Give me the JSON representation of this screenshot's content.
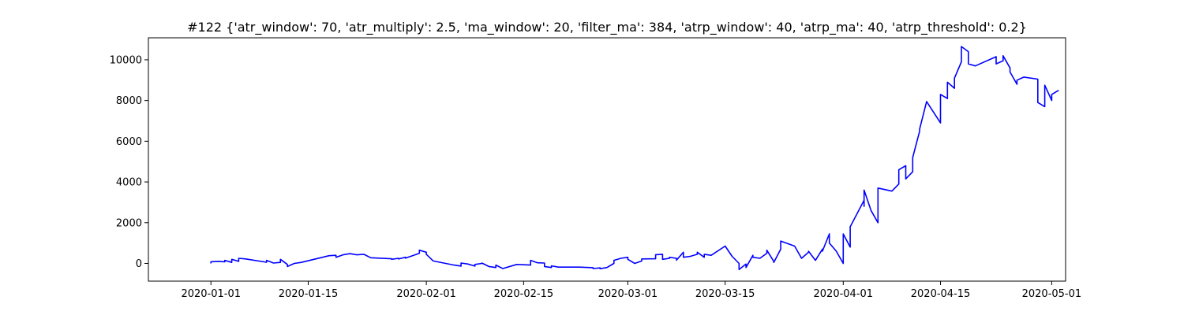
{
  "chart_data": {
    "type": "line",
    "title": "#122 {'atr_window': 70, 'atr_multiply': 2.5, 'ma_window': 20, 'filter_ma': 384, 'atrp_window': 40, 'atrp_ma': 40, 'atrp_threshold': 0.2}",
    "xlabel": "",
    "ylabel": "",
    "x_axis": "date",
    "xlim": [
      "2019-12-23",
      "2020-05-03"
    ],
    "ylim": [
      -870,
      11080
    ],
    "grid": false,
    "legend": "none",
    "x_ticks": [
      "2020-01-01",
      "2020-01-15",
      "2020-02-01",
      "2020-02-15",
      "2020-03-01",
      "2020-03-15",
      "2020-04-01",
      "2020-04-15",
      "2020-05-01"
    ],
    "y_ticks": [
      0,
      2000,
      4000,
      6000,
      8000,
      10000
    ],
    "colors": {
      "line": "#0000ff"
    },
    "series": [
      {
        "points": [
          [
            "2020-01-01",
            0
          ],
          [
            "2020-01-01",
            80
          ],
          [
            "2020-01-02",
            100
          ],
          [
            "2020-01-03",
            80
          ],
          [
            "2020-01-03",
            150
          ],
          [
            "2020-01-04",
            50
          ],
          [
            "2020-01-04",
            200
          ],
          [
            "2020-01-05",
            100
          ],
          [
            "2020-01-05",
            250
          ],
          [
            "2020-01-06",
            220
          ],
          [
            "2020-01-09",
            60
          ],
          [
            "2020-01-09",
            150
          ],
          [
            "2020-01-10",
            20
          ],
          [
            "2020-01-11",
            50
          ],
          [
            "2020-01-11",
            200
          ],
          [
            "2020-01-12",
            -50
          ],
          [
            "2020-01-12",
            -150
          ],
          [
            "2020-01-13",
            0
          ],
          [
            "2020-01-14",
            50
          ],
          [
            "2020-01-18",
            380
          ],
          [
            "2020-01-19",
            400
          ],
          [
            "2020-01-19",
            300
          ],
          [
            "2020-01-20",
            420
          ],
          [
            "2020-01-21",
            480
          ],
          [
            "2020-01-22",
            420
          ],
          [
            "2020-01-23",
            450
          ],
          [
            "2020-01-24",
            280
          ],
          [
            "2020-01-27",
            230
          ],
          [
            "2020-01-27",
            200
          ],
          [
            "2020-01-28",
            250
          ],
          [
            "2020-01-28",
            220
          ],
          [
            "2020-01-29",
            300
          ],
          [
            "2020-01-29",
            260
          ],
          [
            "2020-01-30",
            380
          ],
          [
            "2020-01-31",
            500
          ],
          [
            "2020-01-31",
            650
          ],
          [
            "2020-02-01",
            550
          ],
          [
            "2020-02-01",
            450
          ],
          [
            "2020-02-02",
            120
          ],
          [
            "2020-02-05",
            -80
          ],
          [
            "2020-02-06",
            -130
          ],
          [
            "2020-02-06",
            20
          ],
          [
            "2020-02-07",
            -30
          ],
          [
            "2020-02-08",
            -130
          ],
          [
            "2020-02-08",
            -50
          ],
          [
            "2020-02-09",
            0
          ],
          [
            "2020-02-09",
            20
          ],
          [
            "2020-02-10",
            -150
          ],
          [
            "2020-02-11",
            -200
          ],
          [
            "2020-02-11",
            -80
          ],
          [
            "2020-02-12",
            -250
          ],
          [
            "2020-02-14",
            -50
          ],
          [
            "2020-02-16",
            -80
          ],
          [
            "2020-02-16",
            150
          ],
          [
            "2020-02-17",
            30
          ],
          [
            "2020-02-18",
            20
          ],
          [
            "2020-02-18",
            -150
          ],
          [
            "2020-02-19",
            -200
          ],
          [
            "2020-02-19",
            -120
          ],
          [
            "2020-02-20",
            -180
          ],
          [
            "2020-02-23",
            -180
          ],
          [
            "2020-02-25",
            -210
          ],
          [
            "2020-02-25",
            -250
          ],
          [
            "2020-02-26",
            -220
          ],
          [
            "2020-02-26",
            -260
          ],
          [
            "2020-02-27",
            -200
          ],
          [
            "2020-02-28",
            0
          ],
          [
            "2020-02-28",
            150
          ],
          [
            "2020-02-29",
            250
          ],
          [
            "2020-03-01",
            300
          ],
          [
            "2020-03-01",
            200
          ],
          [
            "2020-03-02",
            0
          ],
          [
            "2020-03-03",
            120
          ],
          [
            "2020-03-03",
            220
          ],
          [
            "2020-03-05",
            230
          ],
          [
            "2020-03-05",
            430
          ],
          [
            "2020-03-06",
            450
          ],
          [
            "2020-03-06",
            200
          ],
          [
            "2020-03-07",
            250
          ],
          [
            "2020-03-07",
            300
          ],
          [
            "2020-03-08",
            250
          ],
          [
            "2020-03-08",
            160
          ],
          [
            "2020-03-09",
            550
          ],
          [
            "2020-03-09",
            300
          ],
          [
            "2020-03-10",
            350
          ],
          [
            "2020-03-11",
            450
          ],
          [
            "2020-03-11",
            550
          ],
          [
            "2020-03-12",
            300
          ],
          [
            "2020-03-12",
            450
          ],
          [
            "2020-03-13",
            400
          ],
          [
            "2020-03-15",
            850
          ],
          [
            "2020-03-16",
            350
          ],
          [
            "2020-03-17",
            0
          ],
          [
            "2020-03-17",
            -300
          ],
          [
            "2020-03-18",
            -30
          ],
          [
            "2020-03-18",
            -200
          ],
          [
            "2020-03-19",
            400
          ],
          [
            "2020-03-19",
            300
          ],
          [
            "2020-03-20",
            250
          ],
          [
            "2020-03-21",
            500
          ],
          [
            "2020-03-21",
            650
          ],
          [
            "2020-03-22",
            100
          ],
          [
            "2020-03-22",
            50
          ],
          [
            "2020-03-23",
            700
          ],
          [
            "2020-03-23",
            1100
          ],
          [
            "2020-03-25",
            850
          ],
          [
            "2020-03-26",
            250
          ],
          [
            "2020-03-27",
            550
          ],
          [
            "2020-03-27",
            600
          ],
          [
            "2020-03-28",
            150
          ],
          [
            "2020-03-29",
            700
          ],
          [
            "2020-03-29",
            600
          ],
          [
            "2020-03-30",
            1450
          ],
          [
            "2020-03-30",
            1000
          ],
          [
            "2020-03-31",
            600
          ],
          [
            "2020-04-01",
            0
          ],
          [
            "2020-04-01",
            500
          ],
          [
            "2020-04-01",
            300
          ],
          [
            "2020-04-01",
            1450
          ],
          [
            "2020-04-02",
            800
          ],
          [
            "2020-04-02",
            1800
          ],
          [
            "2020-04-04",
            3100
          ],
          [
            "2020-04-04",
            2800
          ],
          [
            "2020-04-04",
            3600
          ],
          [
            "2020-04-05",
            2600
          ],
          [
            "2020-04-06",
            2000
          ],
          [
            "2020-04-06",
            3700
          ],
          [
            "2020-04-08",
            3550
          ],
          [
            "2020-04-09",
            3900
          ],
          [
            "2020-04-09",
            4600
          ],
          [
            "2020-04-10",
            4800
          ],
          [
            "2020-04-10",
            4150
          ],
          [
            "2020-04-11",
            4500
          ],
          [
            "2020-04-11",
            5200
          ],
          [
            "2020-04-12",
            6500
          ],
          [
            "2020-04-12",
            6600
          ],
          [
            "2020-04-13",
            7950
          ],
          [
            "2020-04-15",
            6900
          ],
          [
            "2020-04-15",
            8300
          ],
          [
            "2020-04-16",
            8100
          ],
          [
            "2020-04-16",
            8900
          ],
          [
            "2020-04-17",
            8600
          ],
          [
            "2020-04-17",
            9100
          ],
          [
            "2020-04-18",
            9900
          ],
          [
            "2020-04-18",
            10650
          ],
          [
            "2020-04-19",
            10400
          ],
          [
            "2020-04-19",
            9800
          ],
          [
            "2020-04-20",
            9700
          ],
          [
            "2020-04-23",
            10150
          ],
          [
            "2020-04-23",
            9800
          ],
          [
            "2020-04-24",
            9950
          ],
          [
            "2020-04-24",
            10200
          ],
          [
            "2020-04-25",
            9600
          ],
          [
            "2020-04-25",
            9400
          ],
          [
            "2020-04-26",
            8800
          ],
          [
            "2020-04-26",
            9000
          ],
          [
            "2020-04-27",
            9150
          ],
          [
            "2020-04-29",
            9050
          ],
          [
            "2020-04-29",
            7900
          ],
          [
            "2020-04-30",
            7700
          ],
          [
            "2020-04-30",
            8750
          ],
          [
            "2020-05-01",
            8000
          ],
          [
            "2020-05-01",
            8300
          ],
          [
            "2020-05-02",
            8500
          ]
        ]
      }
    ]
  }
}
